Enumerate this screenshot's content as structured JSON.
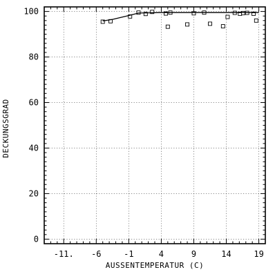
{
  "chart_data": {
    "type": "scatter",
    "title": "",
    "xlabel": "AUSSENTEMPERATUR    (C)",
    "ylabel": "DECKUNGSGRAD",
    "xlim": [
      -14,
      20
    ],
    "ylim": [
      -2,
      102
    ],
    "grid": true,
    "x_ticks": [
      -11,
      -6,
      -1,
      4,
      9,
      14,
      19
    ],
    "x_tick_labels": [
      "-11.",
      "-6",
      "-1",
      "4",
      "9",
      "14",
      "19"
    ],
    "y_ticks": [
      0,
      20,
      40,
      60,
      80,
      100
    ],
    "y_tick_labels": [
      "0",
      "20",
      "40",
      "60",
      "80",
      "100"
    ],
    "series": [
      {
        "kind": "points",
        "marker": "square",
        "points": [
          {
            "x": -5.0,
            "y": 95.5
          },
          {
            "x": -3.8,
            "y": 95.7
          },
          {
            "x": -0.8,
            "y": 97.8
          },
          {
            "x": 0.5,
            "y": 99.5
          },
          {
            "x": 1.6,
            "y": 98.9
          },
          {
            "x": 2.6,
            "y": 99.8
          },
          {
            "x": 4.7,
            "y": 99.1
          },
          {
            "x": 5.0,
            "y": 93.3
          },
          {
            "x": 5.4,
            "y": 99.5
          },
          {
            "x": 8.0,
            "y": 94.3
          },
          {
            "x": 9.0,
            "y": 99.2
          },
          {
            "x": 10.6,
            "y": 99.5
          },
          {
            "x": 11.5,
            "y": 94.6
          },
          {
            "x": 13.5,
            "y": 93.5
          },
          {
            "x": 14.2,
            "y": 97.6
          },
          {
            "x": 15.3,
            "y": 99.4
          },
          {
            "x": 16.1,
            "y": 99.0
          },
          {
            "x": 16.6,
            "y": 99.3
          },
          {
            "x": 17.2,
            "y": 99.4
          },
          {
            "x": 18.2,
            "y": 99.0
          },
          {
            "x": 18.6,
            "y": 96.0
          }
        ]
      },
      {
        "kind": "line",
        "points": [
          {
            "x": -5.0,
            "y": 95.8
          },
          {
            "x": -3.5,
            "y": 96.5
          },
          {
            "x": -1.0,
            "y": 98.2
          },
          {
            "x": 0.5,
            "y": 99.3
          },
          {
            "x": 4.0,
            "y": 99.5
          },
          {
            "x": 19.0,
            "y": 99.5
          }
        ]
      }
    ]
  }
}
